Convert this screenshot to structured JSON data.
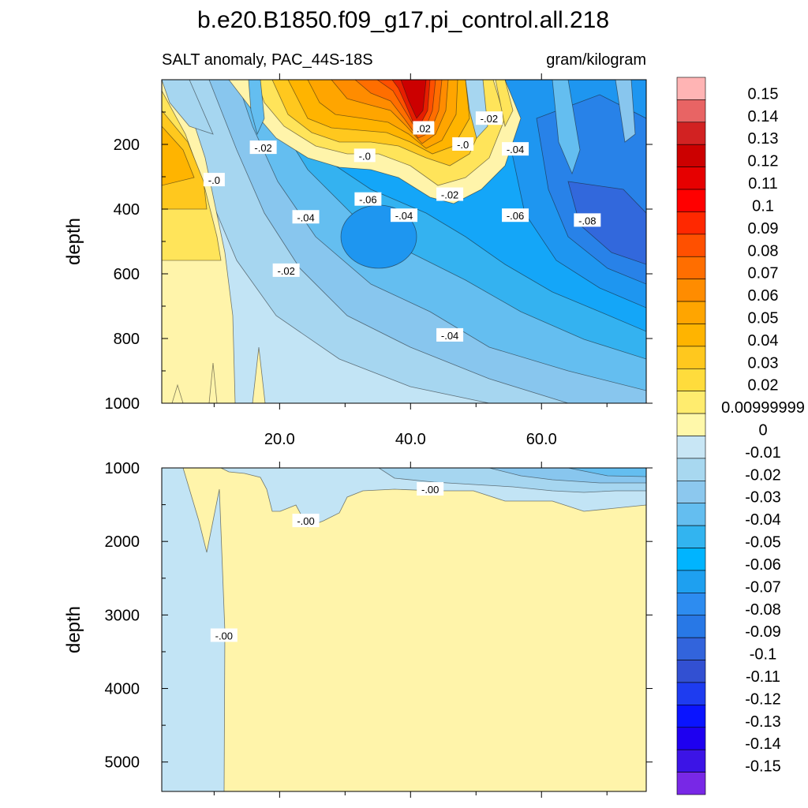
{
  "chart_data": {
    "type": "contour",
    "title": "b.e20.B1850.f09_g17.pi_control.all.218",
    "left_subtitle": "SALT anomaly, PAC_44S-18S",
    "right_subtitle": "gram/kilogram",
    "x_ticks": [
      "20.0",
      "40.0",
      "60.0"
    ],
    "x_range": [
      2,
      76
    ],
    "top_panel": {
      "ylabel": "depth",
      "y_ticks": [
        "200",
        "400",
        "600",
        "800",
        "1000"
      ],
      "y_range": [
        0,
        1000
      ],
      "contour_labels": [
        {
          "text": "-.02",
          "x": 17.5,
          "y": 210
        },
        {
          "text": "-.0",
          "x": 33,
          "y": 235
        },
        {
          "text": "-.0",
          "x": 10,
          "y": 310
        },
        {
          "text": ".02",
          "x": 42,
          "y": 150
        },
        {
          "text": "-.02",
          "x": 52,
          "y": 120
        },
        {
          "text": "-.0",
          "x": 48,
          "y": 200
        },
        {
          "text": "-.04",
          "x": 56,
          "y": 215
        },
        {
          "text": "-.02",
          "x": 46,
          "y": 355
        },
        {
          "text": "-.06",
          "x": 33.5,
          "y": 370
        },
        {
          "text": "-.04",
          "x": 24,
          "y": 425
        },
        {
          "text": "-.04",
          "x": 39,
          "y": 420
        },
        {
          "text": "-.06",
          "x": 56,
          "y": 420
        },
        {
          "text": "-.08",
          "x": 67,
          "y": 435
        },
        {
          "text": "-.02",
          "x": 21,
          "y": 590
        },
        {
          "text": "-.04",
          "x": 46,
          "y": 790
        }
      ]
    },
    "bottom_panel": {
      "ylabel": "depth",
      "y_ticks": [
        "1000",
        "2000",
        "3000",
        "4000",
        "5000"
      ],
      "y_range": [
        1000,
        5400
      ],
      "contour_labels": [
        {
          "text": "-.00",
          "x": 43,
          "y": 1290
        },
        {
          "text": "-.00",
          "x": 24,
          "y": 1720
        },
        {
          "text": "-.00",
          "x": 11.5,
          "y": 3280
        }
      ]
    },
    "colorbar": {
      "labels": [
        "0.15",
        "0.14",
        "0.13",
        "0.12",
        "0.11",
        "0.1",
        "0.09",
        "0.08",
        "0.07",
        "0.06",
        "0.05",
        "0.04",
        "0.03",
        "0.02",
        "0.00999999",
        "0",
        "-0.01",
        "-0.02",
        "-0.03",
        "-0.04",
        "-0.05",
        "-0.06",
        "-0.07",
        "-0.08",
        "-0.09",
        "-0.1",
        "-0.11",
        "-0.12",
        "-0.13",
        "-0.14",
        "-0.15"
      ],
      "colors": [
        "#ffb4b4",
        "#e86464",
        "#d22222",
        "#cc0000",
        "#e60000",
        "#ff0000",
        "#ff2800",
        "#ff5000",
        "#ff6e00",
        "#ff8c00",
        "#ffa500",
        "#ffb400",
        "#ffc81e",
        "#ffdc3c",
        "#ffec6e",
        "#fff8aa",
        "#c8e6f5",
        "#a8d8f0",
        "#8cc8ee",
        "#64bef0",
        "#32b4f0",
        "#00b4ff",
        "#1ea0f0",
        "#2d8cf0",
        "#2878e6",
        "#3264dc",
        "#3250d2",
        "#1e3cf0",
        "#0a14ff",
        "#1e00f0",
        "#3c14e6",
        "#7828e6"
      ]
    },
    "field_colors": {
      "pos_0": "#fff4aa",
      "pos_1": "#ffe45a",
      "pos_2": "#ffc81e",
      "pos_3": "#ffb400",
      "pos_4": "#ffa500",
      "pos_5": "#ff8c00",
      "pos_6": "#ff6e00",
      "pos_7": "#ff5000",
      "pos_8": "#e61e00",
      "pos_9": "#cc0000",
      "neg_1": "#c2e4f5",
      "neg_2": "#a6d6f0",
      "neg_3": "#88c6ee",
      "neg_4": "#64bef0",
      "neg_5": "#34b2f0",
      "neg_6": "#14a6f8",
      "neg_7": "#1e96f0",
      "neg_8": "#2882e8",
      "neg_9": "#3268dc"
    }
  }
}
